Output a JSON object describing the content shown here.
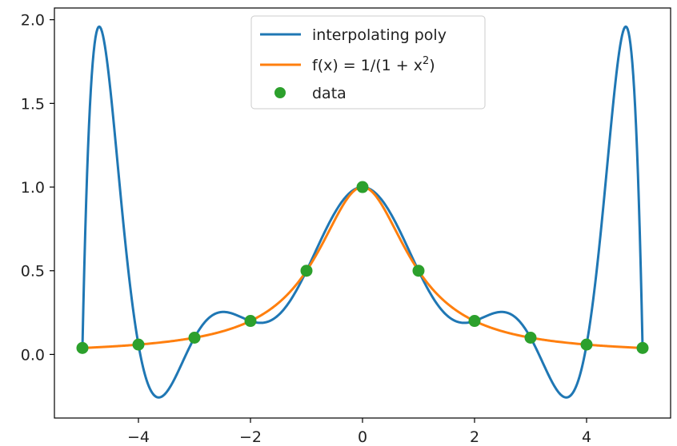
{
  "chart_data": {
    "type": "line",
    "title": "",
    "xlabel": "",
    "ylabel": "",
    "xlim": [
      -5.5,
      5.5
    ],
    "ylim": [
      -0.38,
      2.07
    ],
    "grid": false,
    "legend_position": "top-center",
    "x_ticks": [
      -4,
      -2,
      0,
      2,
      4
    ],
    "x_tick_labels": [
      "−4",
      "−2",
      "0",
      "2",
      "4"
    ],
    "y_ticks": [
      0.0,
      0.5,
      1.0,
      1.5,
      2.0
    ],
    "y_tick_labels": [
      "0.0",
      "0.5",
      "1.0",
      "1.5",
      "2.0"
    ],
    "series": [
      {
        "name": "interpolating poly",
        "kind": "line",
        "color": "#1f77b4",
        "function": "degree-10 interpolating polynomial through data"
      },
      {
        "name": "f(x) = 1/(1 + x²)",
        "kind": "line",
        "color": "#ff7f0e",
        "function": "1/(1+x^2)"
      },
      {
        "name": "data",
        "kind": "scatter",
        "color": "#2ca02c",
        "x": [
          -5,
          -4,
          -3,
          -2,
          -1,
          0,
          1,
          2,
          3,
          4,
          5
        ],
        "y": [
          0.0385,
          0.0588,
          0.1,
          0.2,
          0.5,
          1.0,
          0.5,
          0.2,
          0.1,
          0.0588,
          0.0385
        ]
      }
    ],
    "legend": [
      {
        "label": "interpolating poly",
        "color": "#1f77b4",
        "marker": "line"
      },
      {
        "label_prefix": "f(x) = 1/(1 + x",
        "label_sup": "2",
        "label_suffix": ")",
        "color": "#ff7f0e",
        "marker": "line"
      },
      {
        "label": "data",
        "color": "#2ca02c",
        "marker": "dot"
      }
    ]
  }
}
